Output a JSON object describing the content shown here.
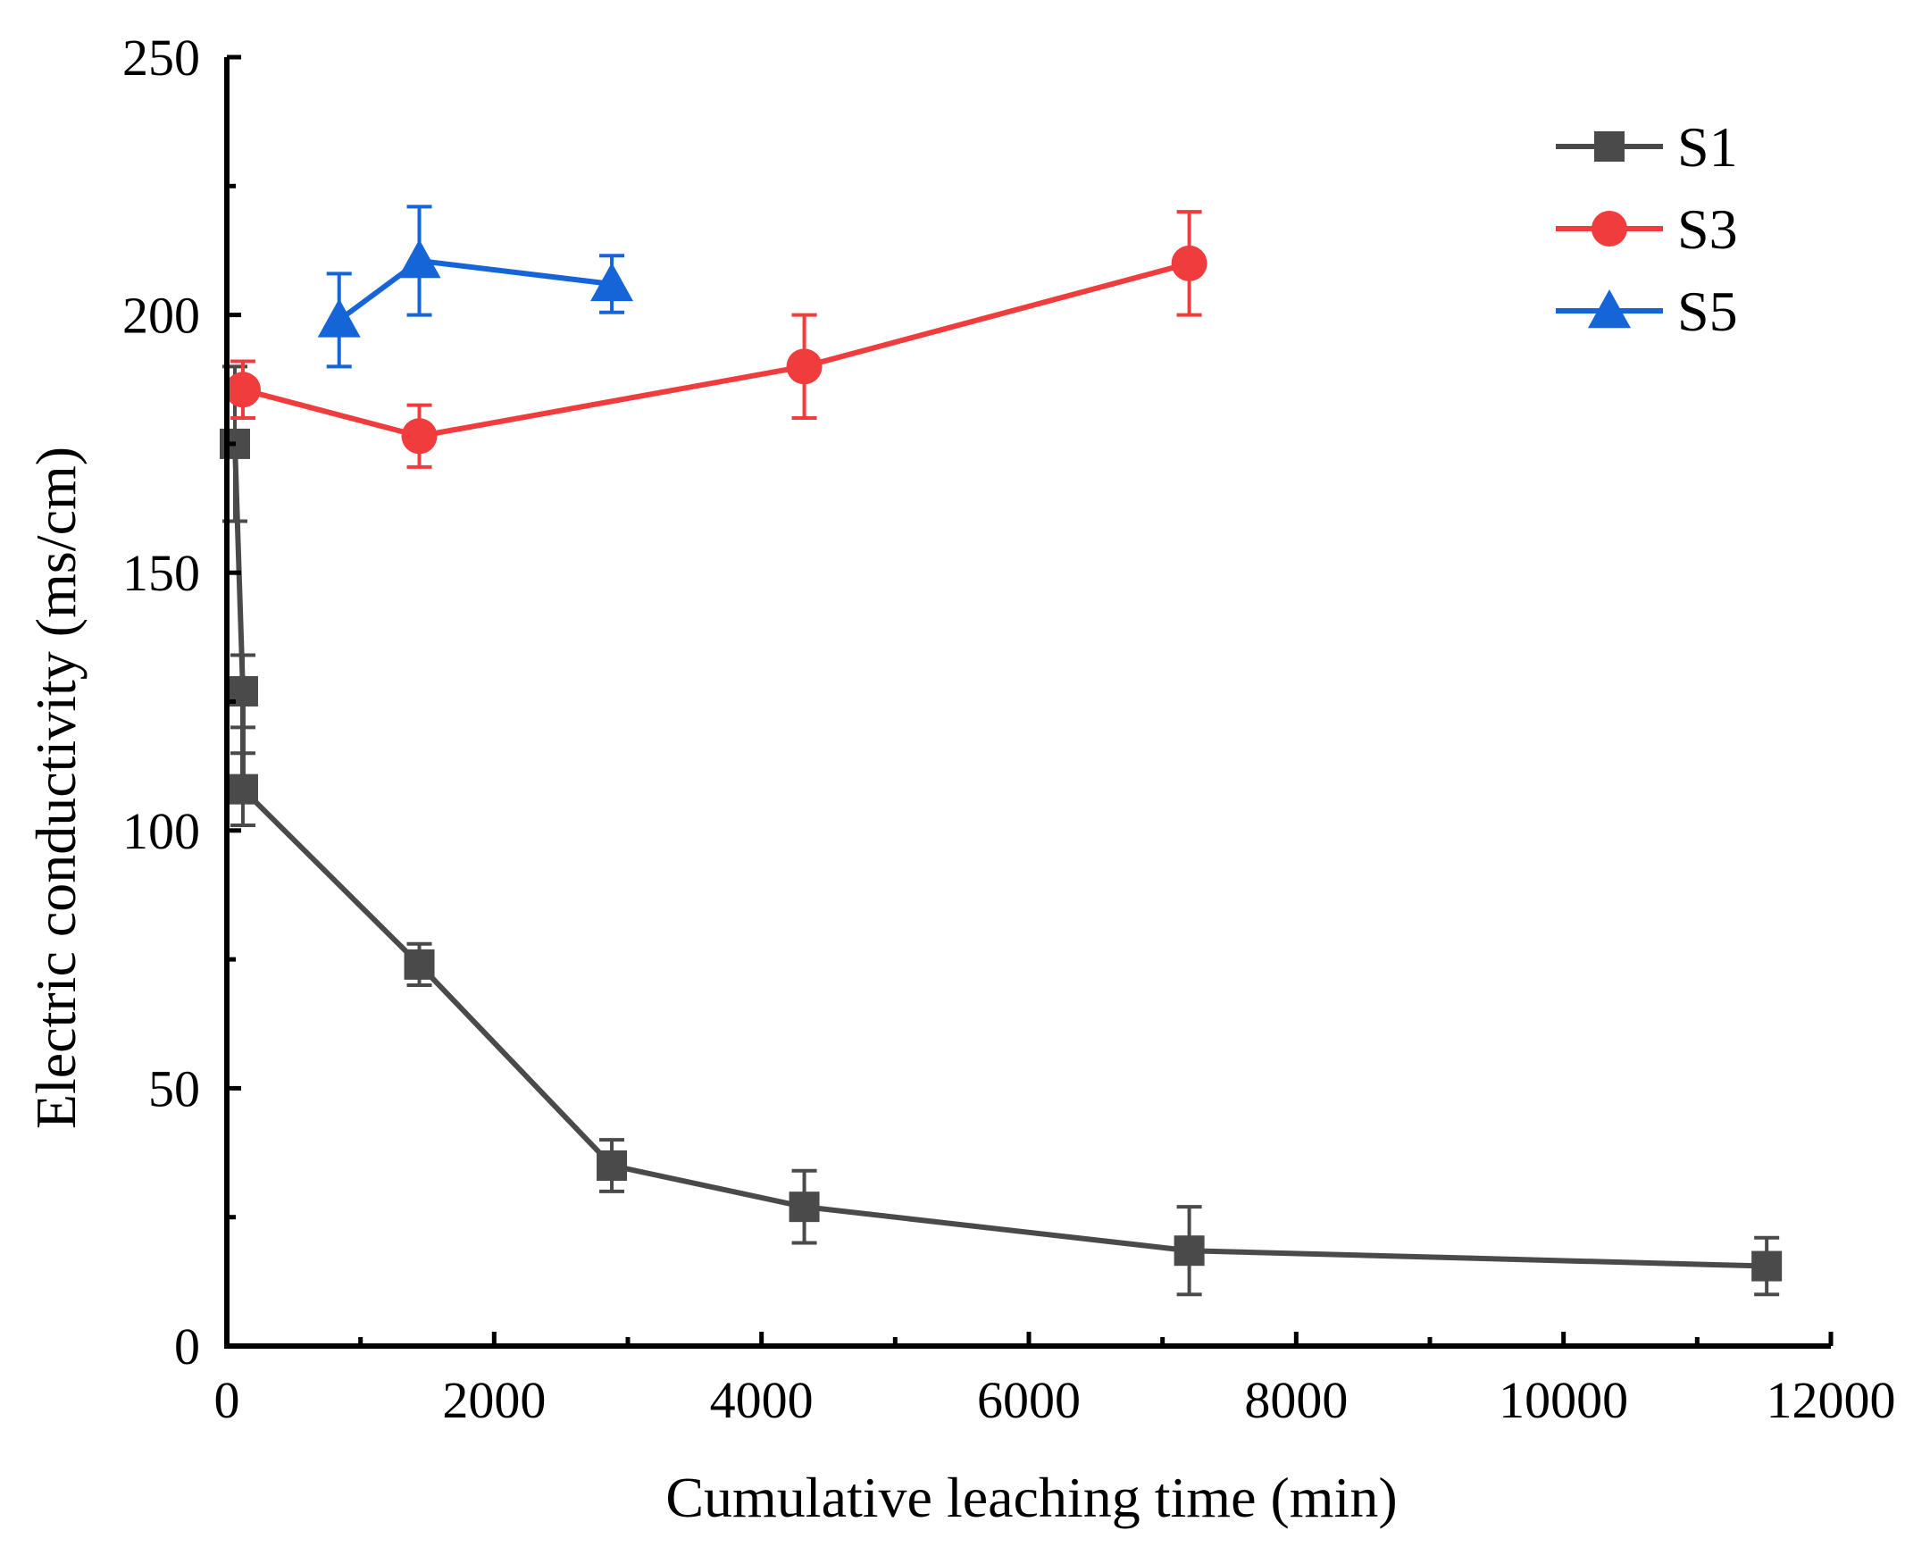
{
  "chart_data": {
    "type": "line",
    "title": "",
    "xlabel": "Cumulative leaching time (min)",
    "ylabel": "Electric conductivity (ms/cm)",
    "xlim": [
      0,
      12000
    ],
    "ylim": [
      0,
      250
    ],
    "x_ticks": [
      0,
      2000,
      4000,
      6000,
      8000,
      10000,
      12000
    ],
    "x_tick_labels": [
      "0",
      "2000",
      "4000",
      "6000",
      "8000",
      "10000",
      "12000"
    ],
    "y_ticks": [
      0,
      50,
      100,
      150,
      200,
      250
    ],
    "y_tick_labels": [
      "0",
      "50",
      "100",
      "150",
      "200",
      "250"
    ],
    "grid": false,
    "legend_position": "top-right",
    "series": [
      {
        "name": "S1",
        "color": "#4a4a4a",
        "marker": "square",
        "points": [
          {
            "x": 60,
            "y": 175,
            "err": 15
          },
          {
            "x": 120,
            "y": 127,
            "err": 7
          },
          {
            "x": 120,
            "y": 108,
            "err": 7
          },
          {
            "x": 1440,
            "y": 74,
            "err": 4
          },
          {
            "x": 2880,
            "y": 35,
            "err": 5
          },
          {
            "x": 4320,
            "y": 27,
            "err": 7
          },
          {
            "x": 7200,
            "y": 18.5,
            "err": 8.5
          },
          {
            "x": 11520,
            "y": 15.5,
            "err": 5.5
          }
        ]
      },
      {
        "name": "S3",
        "color": "#f03c3c",
        "marker": "circle",
        "points": [
          {
            "x": 120,
            "y": 185.5,
            "err": 5.5
          },
          {
            "x": 1440,
            "y": 176.5,
            "err": 6
          },
          {
            "x": 4320,
            "y": 190,
            "err": 10
          },
          {
            "x": 7200,
            "y": 210,
            "err": 10
          }
        ]
      },
      {
        "name": "S5",
        "color": "#1565d8",
        "marker": "triangle",
        "points": [
          {
            "x": 840,
            "y": 199,
            "err": 9
          },
          {
            "x": 1440,
            "y": 210.5,
            "err": 10.5
          },
          {
            "x": 2880,
            "y": 206,
            "err": 5.5
          }
        ]
      }
    ]
  }
}
